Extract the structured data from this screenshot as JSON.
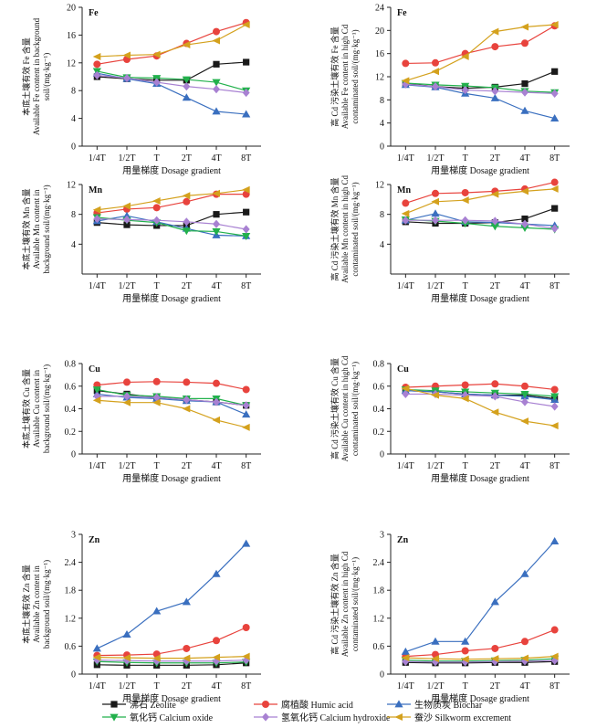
{
  "x_categories": [
    "1/4T",
    "1/2T",
    "T",
    "2T",
    "4T",
    "8T"
  ],
  "series": [
    {
      "name": "沸石 Zeolite",
      "color": "#1a1a1a",
      "marker": "square"
    },
    {
      "name": "腐植酸 Humic acid",
      "color": "#e8433d",
      "marker": "circle"
    },
    {
      "name": "生物质炭 Biochar",
      "color": "#3a6fbf",
      "marker": "triangle"
    },
    {
      "name": "氧化钙 Calcium oxide",
      "color": "#22b14c",
      "marker": "triangle-down"
    },
    {
      "name": "氢氧化钙 Calcium hydroxide",
      "color": "#a881d2",
      "marker": "diamond"
    },
    {
      "name": "蚕沙 Silkworm excrement",
      "color": "#d4a11d",
      "marker": "triangle-left"
    }
  ],
  "chart_data": [
    {
      "type": "line",
      "element": "Fe",
      "xlabel": "用量梯度 Dosage gradient",
      "ylabel": [
        "本底土壤有效 Fe 含量",
        "Available Fe content in background",
        "soil/(mg·kg⁻¹)"
      ],
      "ylim": [
        0,
        20
      ],
      "yticks": [
        0,
        4,
        8,
        12,
        16,
        20
      ],
      "series": [
        [
          10.0,
          9.7,
          9.5,
          9.5,
          11.8,
          12.1
        ],
        [
          11.8,
          12.5,
          13.0,
          14.8,
          16.5,
          17.8
        ],
        [
          10.5,
          9.7,
          9.0,
          7.0,
          5.0,
          4.6
        ],
        [
          10.8,
          9.9,
          9.8,
          9.6,
          9.2,
          8.0
        ],
        [
          10.2,
          9.8,
          9.2,
          8.6,
          8.2,
          7.7
        ],
        [
          12.9,
          13.1,
          13.2,
          14.6,
          15.2,
          17.5
        ]
      ]
    },
    {
      "type": "line",
      "element": "Fe",
      "xlabel": "用量梯度 Dosage gradient",
      "ylabel": [
        "高 Cd 污染土壤有效 Fe 含量",
        "Available Fe content in high Cd",
        "contaminated soil/(mg·kg⁻¹)"
      ],
      "ylim": [
        0,
        24
      ],
      "yticks": [
        0,
        4,
        8,
        12,
        16,
        20,
        24
      ],
      "series": [
        [
          10.8,
          10.3,
          10.0,
          10.2,
          10.8,
          12.9
        ],
        [
          14.3,
          14.4,
          16.0,
          17.2,
          17.8,
          20.8
        ],
        [
          10.6,
          10.2,
          9.1,
          8.3,
          6.1,
          4.8
        ],
        [
          10.9,
          10.6,
          10.4,
          10.1,
          9.5,
          9.3
        ],
        [
          10.7,
          10.3,
          9.7,
          9.5,
          9.3,
          9.1
        ],
        [
          11.3,
          12.9,
          15.5,
          19.8,
          20.6,
          21.0
        ]
      ]
    },
    {
      "type": "line",
      "element": "Mn",
      "xlabel": "用量梯度 Dosage gradient",
      "ylabel": [
        "本底土壤有效 Mn 含量",
        "Available Mn content in",
        "background soil/(mg·kg⁻¹)"
      ],
      "ylim": [
        0,
        12
      ],
      "yticks": [
        4,
        8,
        12
      ],
      "series": [
        [
          6.9,
          6.6,
          6.5,
          6.5,
          8.0,
          8.3
        ],
        [
          8.2,
          8.7,
          8.9,
          9.7,
          10.7,
          10.7
        ],
        [
          7.1,
          7.8,
          7.0,
          6.1,
          5.2,
          5.1
        ],
        [
          7.6,
          7.2,
          6.9,
          5.8,
          5.7,
          5.1
        ],
        [
          7.4,
          7.3,
          7.2,
          7.0,
          6.7,
          6.0
        ],
        [
          8.6,
          9.1,
          9.8,
          10.5,
          10.8,
          11.3
        ]
      ]
    },
    {
      "type": "line",
      "element": "Mn",
      "xlabel": "用量梯度 Dosage gradient",
      "ylabel": [
        "高 Cd 污染土壤有效 Mn 含量",
        "Available Mn content in high Cd",
        "contaminated soil/(mg·kg⁻¹)"
      ],
      "ylim": [
        0,
        12
      ],
      "yticks": [
        4,
        8,
        12
      ],
      "series": [
        [
          7.0,
          6.8,
          6.8,
          6.9,
          7.4,
          8.8
        ],
        [
          9.5,
          10.8,
          10.9,
          11.1,
          11.4,
          12.3
        ],
        [
          7.2,
          8.1,
          7.0,
          6.9,
          6.7,
          6.5
        ],
        [
          7.3,
          7.1,
          6.8,
          6.4,
          6.2,
          6.0
        ],
        [
          7.2,
          7.2,
          7.2,
          7.1,
          6.7,
          6.1
        ],
        [
          8.1,
          9.7,
          9.9,
          10.7,
          11.1,
          11.4
        ]
      ]
    },
    {
      "type": "line",
      "element": "Cu",
      "xlabel": "用量梯度 Dosage gradient",
      "ylabel": [
        "本底土壤有效 Cu 含量",
        "Available Cu content in",
        "background soil/(mg·kg⁻¹)"
      ],
      "ylim": [
        0,
        0.8
      ],
      "yticks": [
        0,
        0.2,
        0.4,
        0.6,
        0.8
      ],
      "series": [
        [
          0.56,
          0.53,
          0.5,
          0.48,
          0.46,
          0.43
        ],
        [
          0.61,
          0.635,
          0.64,
          0.635,
          0.625,
          0.57
        ],
        [
          0.53,
          0.5,
          0.49,
          0.47,
          0.46,
          0.35
        ],
        [
          0.57,
          0.52,
          0.51,
          0.49,
          0.49,
          0.43
        ],
        [
          0.51,
          0.51,
          0.5,
          0.48,
          0.46,
          0.43
        ],
        [
          0.475,
          0.455,
          0.455,
          0.4,
          0.3,
          0.235
        ]
      ]
    },
    {
      "type": "line",
      "element": "Cu",
      "xlabel": "用量梯度 Dosage gradient",
      "ylabel": [
        "高 Cd 污染土壤有效 Cu 含量",
        "Available Cu content in high Cd",
        "contaminated soil/(mg·kg⁻¹)"
      ],
      "ylim": [
        0,
        0.8
      ],
      "yticks": [
        0,
        0.2,
        0.4,
        0.6,
        0.8
      ],
      "series": [
        [
          0.56,
          0.55,
          0.53,
          0.52,
          0.52,
          0.49
        ],
        [
          0.59,
          0.6,
          0.61,
          0.62,
          0.6,
          0.57
        ],
        [
          0.56,
          0.55,
          0.53,
          0.52,
          0.51,
          0.48
        ],
        [
          0.57,
          0.56,
          0.55,
          0.54,
          0.53,
          0.51
        ],
        [
          0.53,
          0.53,
          0.52,
          0.51,
          0.46,
          0.42
        ],
        [
          0.58,
          0.52,
          0.49,
          0.37,
          0.29,
          0.25
        ]
      ]
    },
    {
      "type": "line",
      "element": "Zn",
      "xlabel": "用量梯度 Dosage gradient",
      "ylabel": [
        "本底土壤有效 Zn 含量",
        "Available Zn content in",
        "background soil/(mg·kg⁻¹)"
      ],
      "ylim": [
        0,
        3.0
      ],
      "yticks": [
        0,
        0.6,
        1.2,
        1.8,
        2.4,
        3.0
      ],
      "series": [
        [
          0.2,
          0.19,
          0.19,
          0.19,
          0.2,
          0.24
        ],
        [
          0.4,
          0.41,
          0.43,
          0.55,
          0.72,
          1.0
        ],
        [
          0.55,
          0.85,
          1.35,
          1.55,
          2.15,
          2.8
        ],
        [
          0.27,
          0.25,
          0.24,
          0.24,
          0.24,
          0.26
        ],
        [
          0.3,
          0.29,
          0.28,
          0.28,
          0.28,
          0.3
        ],
        [
          0.36,
          0.35,
          0.34,
          0.34,
          0.36,
          0.38
        ]
      ]
    },
    {
      "type": "line",
      "element": "Zn",
      "xlabel": "用量梯度 Dosage gradient",
      "ylabel": [
        "高 Cd 污染土壤有效 Zn 含量",
        "Available Zn content in high Cd",
        "contaminated soil/(mg·kg⁻¹)"
      ],
      "ylim": [
        0,
        3.0
      ],
      "yticks": [
        0,
        0.6,
        1.2,
        1.8,
        2.4,
        3.0
      ],
      "series": [
        [
          0.25,
          0.24,
          0.24,
          0.25,
          0.25,
          0.27
        ],
        [
          0.38,
          0.42,
          0.5,
          0.55,
          0.7,
          0.95
        ],
        [
          0.48,
          0.7,
          0.7,
          1.55,
          2.15,
          2.85
        ],
        [
          0.3,
          0.28,
          0.28,
          0.29,
          0.3,
          0.33
        ],
        [
          0.27,
          0.26,
          0.26,
          0.27,
          0.28,
          0.29
        ],
        [
          0.35,
          0.33,
          0.32,
          0.33,
          0.34,
          0.38
        ]
      ]
    }
  ]
}
